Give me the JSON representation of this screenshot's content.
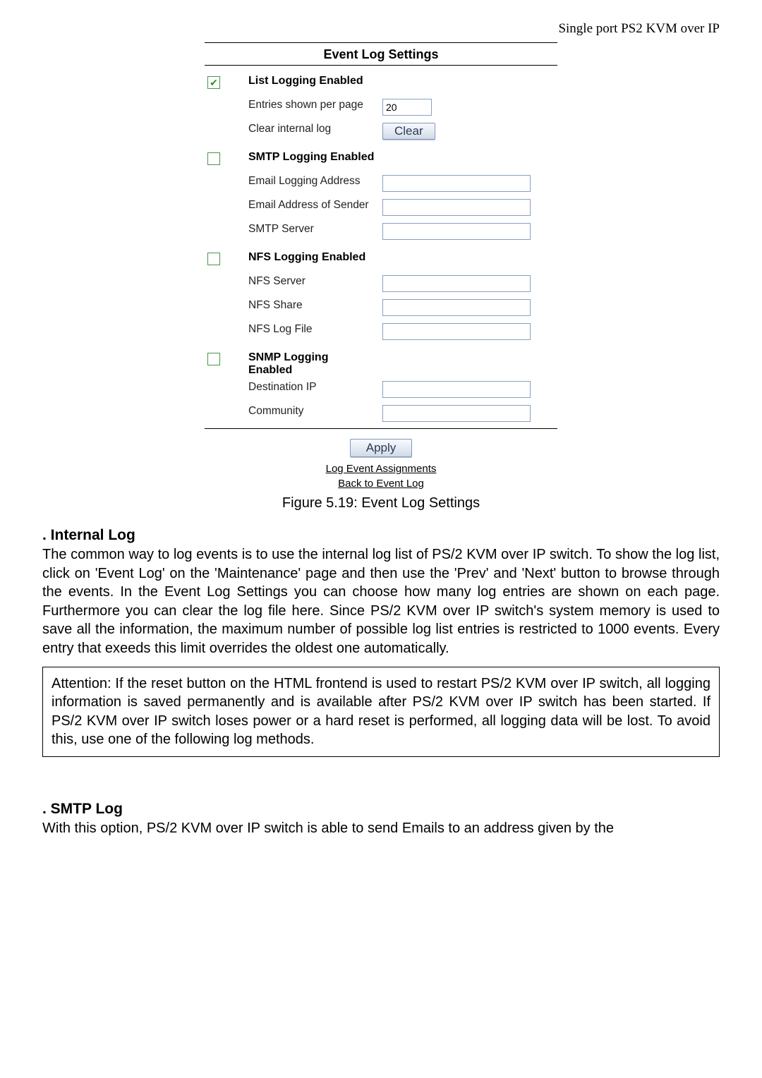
{
  "header": {
    "right_text": "Single port PS2 KVM over IP"
  },
  "panel": {
    "title": "Event Log Settings",
    "list_section": {
      "heading": "List Logging Enabled",
      "checked": true,
      "entries_label": "Entries shown per page",
      "entries_value": "20",
      "clear_label": "Clear internal log",
      "clear_button": "Clear"
    },
    "smtp_section": {
      "heading": "SMTP Logging Enabled",
      "checked": false,
      "email_logging_addr_label": "Email Logging Address",
      "email_logging_addr_value": "",
      "email_sender_label": "Email Address of Sender",
      "email_sender_value": "",
      "smtp_server_label": "SMTP Server",
      "smtp_server_value": ""
    },
    "nfs_section": {
      "heading": "NFS Logging Enabled",
      "checked": false,
      "nfs_server_label": "NFS Server",
      "nfs_server_value": "",
      "nfs_share_label": "NFS Share",
      "nfs_share_value": "",
      "nfs_logfile_label": "NFS Log File",
      "nfs_logfile_value": ""
    },
    "snmp_section": {
      "heading": "SNMP Logging Enabled",
      "checked": false,
      "dest_ip_label": "Destination IP",
      "dest_ip_value": "",
      "community_label": "Community",
      "community_value": ""
    },
    "footer": {
      "apply_button": "Apply",
      "link1": "Log Event Assignments",
      "link2": "Back to Event Log"
    }
  },
  "caption": "Figure 5.19: Event Log Settings",
  "doc": {
    "internal_log_title": ". Internal Log",
    "internal_log_body": "The common way to log events is to use the internal log list of PS/2 KVM over IP switch. To show the log list, click on 'Event Log' on the 'Maintenance' page and then use the 'Prev' and 'Next' button to browse through the events. In the Event Log Settings you can choose how many log entries are shown on each page. Furthermore you can clear the log file here. Since PS/2 KVM over IP switch's system memory is used to save all the information, the maximum number of possible log list entries is restricted to 1000 events. Every entry that exeeds this limit overrides the oldest one automatically.",
    "attention": "Attention: If the reset button on the HTML frontend is used to restart PS/2 KVM over IP switch, all logging information is saved permanently and is available after PS/2 KVM over IP switch has been started. If PS/2 KVM over IP switch loses power or a hard reset is performed, all logging data will be lost. To avoid this, use one of the following log methods.",
    "smtp_log_title": ". SMTP Log",
    "smtp_log_body": "With this option, PS/2 KVM over IP switch is able to send Emails to an address given by the"
  },
  "style": {
    "checkbox_border": "#4a944a",
    "checkbox_check_color": "#2e8b2e",
    "input_border": "#8aa0c0",
    "button_border": "#7f99b8",
    "button_text_color": "#2b3a55"
  }
}
